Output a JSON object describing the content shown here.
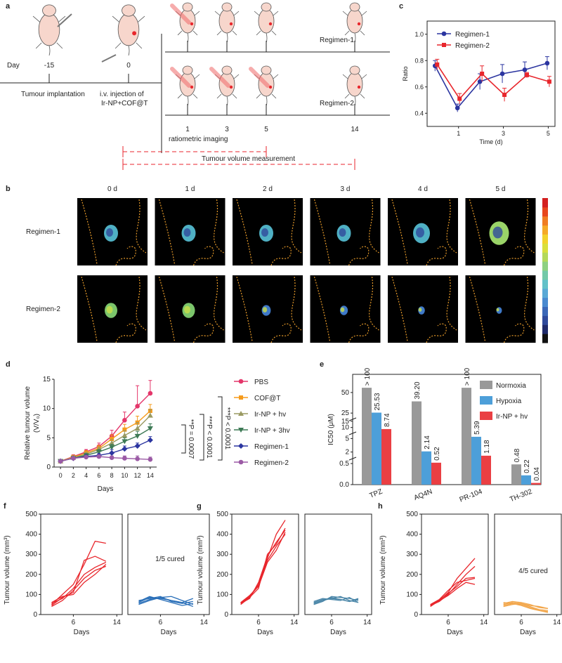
{
  "panels": {
    "a": "a",
    "b": "b",
    "c": "c",
    "d": "d",
    "e": "e",
    "f": "f",
    "g": "g",
    "h": "h"
  },
  "colors": {
    "regimen1": "#2b35a0",
    "regimen2": "#e8262c",
    "pbs": "#e4366a",
    "cof": "#f59b1c",
    "ir_hv": "#9a9a62",
    "ir_3hv": "#3d7a55",
    "reg2_d": "#9b5aa5",
    "normoxia": "#999999",
    "hypoxia": "#4d9fd9",
    "irnp": "#ea3f43",
    "cured_blue": "#2a6fb8",
    "cured_teal": "#4a86a8",
    "cured_orange": "#f2a64a",
    "dash_red": "#e8262c",
    "skin": "#f7d6cc",
    "tumour_red": "#e8262c"
  },
  "panel_a": {
    "day_label": "Day",
    "day_minus15": "-15",
    "day_0": "0",
    "tumour_implantation": "Tumour implantation",
    "iv_line1": "i.v. injection of",
    "iv_line2": "Ir-NP+COF@T",
    "regimen1": "Regimen-1",
    "regimen2": "Regimen-2",
    "days": [
      "1",
      "3",
      "5",
      "14"
    ],
    "ratiometric": "ratiometric imaging",
    "tumour_volume": "Tumour volume measurement"
  },
  "panel_b": {
    "days": [
      "0 d",
      "1 d",
      "2 d",
      "3 d",
      "4 d",
      "5 d"
    ],
    "rows": [
      "Regimen-1",
      "Regimen-2"
    ],
    "colorbar": [
      "#111111",
      "#1f2a6a",
      "#2f4a9b",
      "#3b68b8",
      "#4a8ad0",
      "#5aa9d6",
      "#63c1c9",
      "#73c9a8",
      "#8ed181",
      "#b4d95a",
      "#d9df3c",
      "#f2d22c",
      "#f5aa27",
      "#f07d22",
      "#e8471d",
      "#d42020"
    ]
  },
  "chart_data": [
    {
      "id": "c",
      "type": "line",
      "x": [
        0,
        1,
        2,
        3,
        4,
        5
      ],
      "xticks": [
        1,
        3,
        5
      ],
      "xlabel": "Time (d)",
      "ylabel": "Ratio",
      "ylim": [
        0.3,
        1.1
      ],
      "yticks": [
        "0.4",
        "0.6",
        "0.8",
        "1.0"
      ],
      "xlim": [
        -0.4,
        5.3
      ],
      "series": [
        {
          "name": "Regimen-1",
          "values": [
            0.76,
            0.44,
            0.64,
            0.7,
            0.73,
            0.78
          ],
          "err": [
            0.04,
            0.03,
            0.06,
            0.07,
            0.06,
            0.05
          ]
        },
        {
          "name": "Regimen-2",
          "values": [
            0.77,
            0.51,
            0.7,
            0.54,
            0.69,
            0.64
          ],
          "err": [
            0.04,
            0.04,
            0.06,
            0.05,
            0.02,
            0.04
          ]
        }
      ]
    },
    {
      "id": "d",
      "type": "line",
      "x": [
        0,
        2,
        4,
        6,
        8,
        10,
        12,
        14
      ],
      "xticks": [
        "0",
        "2",
        "4",
        "6",
        "8",
        "10",
        "12",
        "14"
      ],
      "xlabel": "Days",
      "ylabel": "Relative tumour volume",
      "ylabel2": "(V/V₀)",
      "ylim": [
        0,
        15
      ],
      "yticks": [
        "0",
        "5",
        "10",
        "15"
      ],
      "series": [
        {
          "name": "PBS",
          "values": [
            1.0,
            1.8,
            2.6,
            3.5,
            5.3,
            8.0,
            10.4,
            12.6
          ],
          "err": [
            0.2,
            0.3,
            0.4,
            0.6,
            1.0,
            1.4,
            3.5,
            2.2
          ]
        },
        {
          "name": "COF@T",
          "values": [
            1.0,
            1.7,
            2.4,
            3.2,
            4.8,
            6.4,
            7.6,
            9.6
          ],
          "err": [
            0.2,
            0.3,
            0.4,
            0.5,
            0.7,
            0.9,
            1.1,
            1.1
          ]
        },
        {
          "name": "Ir-NP + hv",
          "values": [
            1.0,
            1.6,
            2.2,
            3.0,
            4.1,
            5.4,
            6.6,
            8.8
          ],
          "err": [
            0.2,
            0.3,
            0.3,
            0.4,
            0.6,
            0.8,
            1.0,
            1.0
          ]
        },
        {
          "name": "Ir-NP + 3hv",
          "values": [
            1.0,
            1.5,
            2.0,
            2.6,
            3.4,
            4.4,
            5.3,
            6.6
          ],
          "err": [
            0.2,
            0.2,
            0.3,
            0.4,
            0.5,
            0.6,
            0.8,
            0.8
          ]
        },
        {
          "name": "Regimen-1",
          "values": [
            1.0,
            1.5,
            1.8,
            2.0,
            2.4,
            3.1,
            3.6,
            4.6
          ],
          "err": [
            0.1,
            0.2,
            0.2,
            0.3,
            0.6,
            0.5,
            0.5,
            0.6
          ]
        },
        {
          "name": "Regimen-2",
          "values": [
            1.0,
            1.5,
            1.7,
            1.8,
            1.6,
            1.5,
            1.4,
            1.3
          ],
          "err": [
            0.1,
            0.2,
            0.2,
            0.2,
            0.3,
            0.4,
            0.5,
            0.4
          ]
        }
      ],
      "annotations": [
        "**P = 0.0007",
        "***P < 0.0001",
        "***P < 0.0001"
      ]
    },
    {
      "id": "e",
      "type": "bar",
      "ylabel": "IC50 (μM)",
      "categories": [
        "TPZ",
        "AQ4N",
        "PR-104",
        "TH-302"
      ],
      "series": [
        {
          "name": "Normoxia",
          "values": [
            100,
            39.2,
            100,
            0.48
          ],
          "labels": [
            "> 100",
            "39.20",
            "> 100",
            "0.48"
          ]
        },
        {
          "name": "Hypoxia",
          "values": [
            25.53,
            2.14,
            5.39,
            0.22
          ],
          "labels": [
            "25.53",
            "2.14",
            "5.39",
            "0.22"
          ]
        },
        {
          "name": "Ir-NP + hv",
          "values": [
            8.74,
            0.52,
            1.18,
            0.04
          ],
          "labels": [
            "8.74",
            "0.52",
            "1.18",
            "0.04"
          ]
        }
      ],
      "yticks": [
        "0.0",
        "0.5",
        "2",
        "5",
        "10",
        "15",
        "25",
        "50"
      ]
    },
    {
      "id": "f",
      "type": "line",
      "ylabel": "Tumour volume (mm³)",
      "xlabel": "Days",
      "ylim": [
        0,
        500
      ],
      "yticks": [
        "0",
        "100",
        "200",
        "300",
        "400",
        "500"
      ],
      "xticks": [
        "6",
        "14"
      ],
      "x": [
        2,
        4,
        6,
        8,
        10,
        12
      ],
      "left": [
        [
          45,
          85,
          110,
          270,
          290,
          265
        ],
        [
          50,
          100,
          150,
          250,
          365,
          355
        ],
        [
          55,
          80,
          130,
          200,
          235,
          260
        ],
        [
          40,
          70,
          120,
          180,
          220,
          240
        ],
        [
          60,
          90,
          100,
          160,
          200,
          250
        ]
      ],
      "right": [
        [
          60,
          85,
          80,
          70,
          60,
          40
        ],
        [
          70,
          80,
          90,
          65,
          55,
          65
        ],
        [
          55,
          75,
          85,
          70,
          60,
          80
        ],
        [
          65,
          90,
          75,
          60,
          45,
          55
        ],
        [
          50,
          70,
          85,
          90,
          70,
          50
        ]
      ],
      "annotation": "1/5 cured"
    },
    {
      "id": "g",
      "type": "line",
      "ylabel": "Tumour volume (mm³)",
      "xlabel": "Days",
      "ylim": [
        0,
        500
      ],
      "yticks": [
        "0",
        "100",
        "200",
        "300",
        "400",
        "500"
      ],
      "xticks": [
        "6",
        "14"
      ],
      "x": [
        2,
        4,
        6,
        8,
        10,
        12
      ],
      "left": [
        [
          55,
          90,
          150,
          280,
          400,
          470
        ],
        [
          50,
          85,
          130,
          300,
          350,
          430
        ],
        [
          60,
          95,
          140,
          260,
          320,
          410
        ],
        [
          55,
          80,
          160,
          290,
          360,
          420
        ],
        [
          58,
          88,
          145,
          270,
          340,
          400
        ]
      ],
      "right": [
        [
          55,
          70,
          85,
          75,
          65,
          80
        ],
        [
          60,
          75,
          80,
          90,
          70,
          60
        ],
        [
          50,
          65,
          90,
          85,
          80,
          70
        ],
        [
          65,
          80,
          75,
          70,
          85,
          60
        ],
        [
          55,
          70,
          80,
          75,
          65,
          75
        ]
      ]
    },
    {
      "id": "h",
      "type": "line",
      "ylabel": "Tumour volume (mm³)",
      "xlabel": "Days",
      "ylim": [
        0,
        500
      ],
      "yticks": [
        "0",
        "100",
        "200",
        "300",
        "400",
        "500"
      ],
      "xticks": [
        "6",
        "14"
      ],
      "x": [
        2,
        4,
        6,
        8,
        10,
        12
      ],
      "left": [
        [
          40,
          70,
          110,
          180,
          230,
          280
        ],
        [
          45,
          65,
          100,
          150,
          200,
          240
        ],
        [
          50,
          75,
          120,
          160,
          170,
          180
        ],
        [
          42,
          68,
          95,
          130,
          160,
          150
        ],
        [
          48,
          72,
          105,
          140,
          180,
          185
        ]
      ],
      "right": [
        [
          50,
          60,
          55,
          40,
          25,
          20
        ],
        [
          55,
          65,
          60,
          50,
          35,
          30
        ],
        [
          45,
          55,
          50,
          35,
          20,
          10
        ],
        [
          60,
          55,
          45,
          30,
          20,
          15
        ],
        [
          40,
          50,
          55,
          45,
          40,
          30
        ]
      ],
      "annotation": "4/5 cured"
    }
  ]
}
